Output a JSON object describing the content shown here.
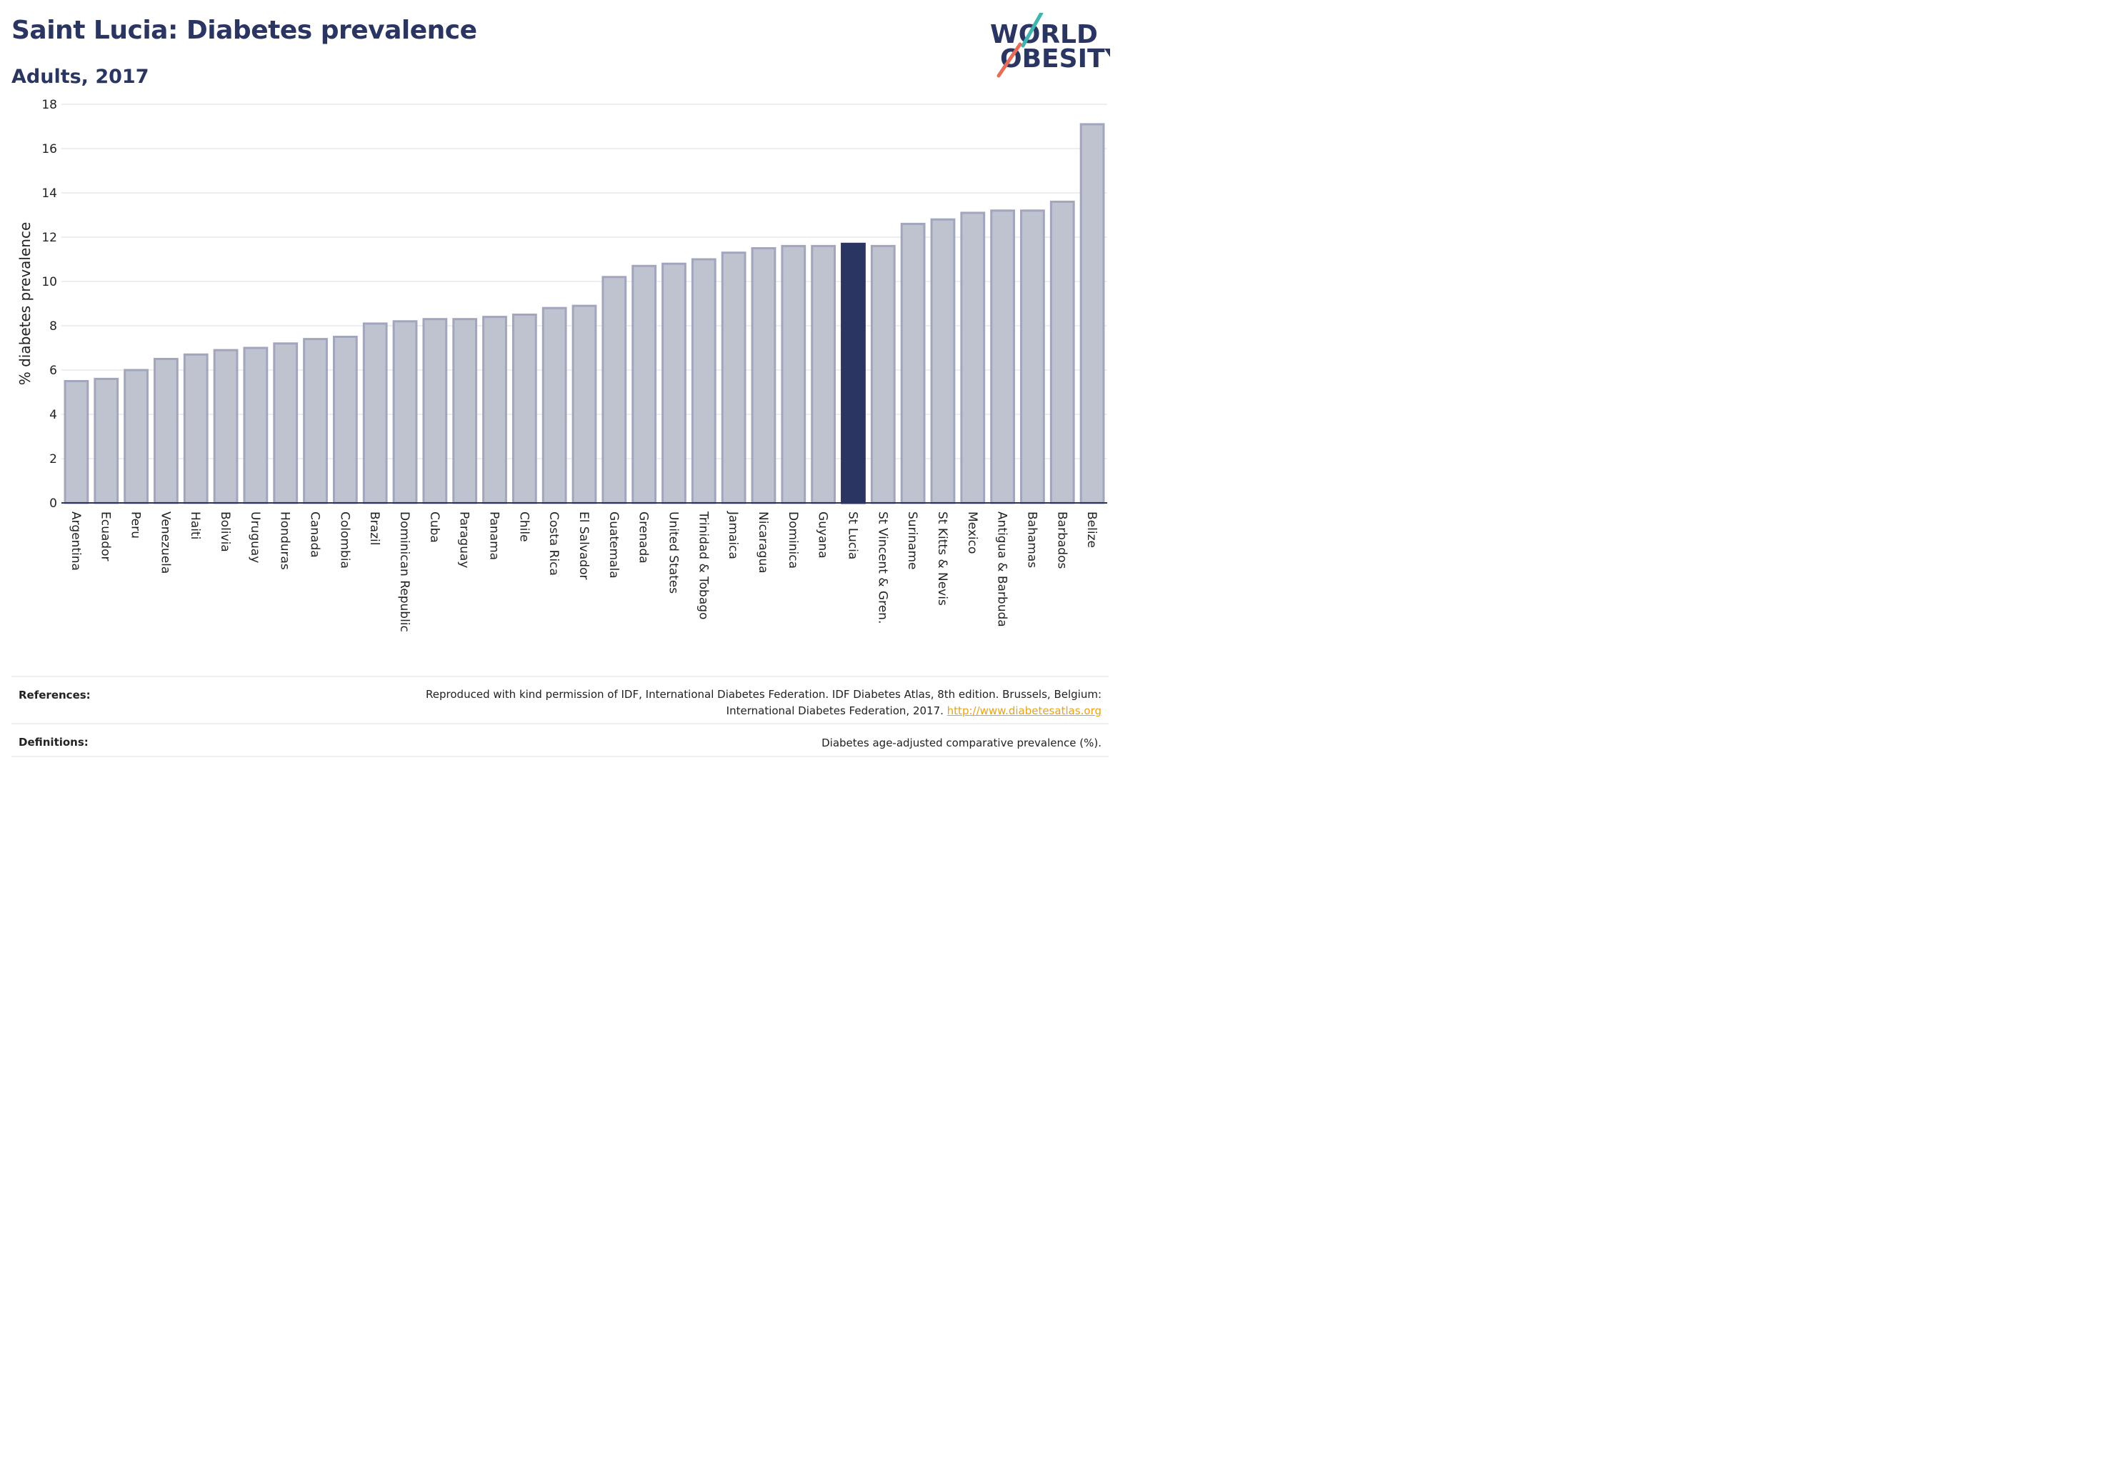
{
  "header": {
    "title": "Saint Lucia: Diabetes prevalence",
    "subtitle": "Adults, 2017"
  },
  "logo": {
    "line1": "WORLD",
    "line2": "OBESITY",
    "name": "world-obesity-logo"
  },
  "chart_data": {
    "type": "bar",
    "title": "Saint Lucia: Diabetes prevalence",
    "subtitle": "Adults, 2017",
    "xlabel": "",
    "ylabel": "% diabetes prevalence",
    "ylim": [
      0,
      18
    ],
    "yticks": [
      0,
      2,
      4,
      6,
      8,
      10,
      12,
      14,
      16,
      18
    ],
    "grid": true,
    "highlight": "St Lucia",
    "colors": {
      "bar": "#bfc2cf",
      "bar_edge": "#a2a6bd",
      "highlight": "#2b3561"
    },
    "categories": [
      "Argentina",
      "Ecuador",
      "Peru",
      "Venezuela",
      "Haiti",
      "Bolivia",
      "Uruguay",
      "Honduras",
      "Canada",
      "Colombia",
      "Brazil",
      "Dominican Republic",
      "Cuba",
      "Paraguay",
      "Panama",
      "Chile",
      "Costa Rica",
      "El Salvador",
      "Guatemala",
      "Grenada",
      "United States",
      "Trinidad & Tobago",
      "Jamaica",
      "Nicaragua",
      "Dominica",
      "Guyana",
      "St Lucia",
      "St Vincent & Gren.",
      "Suriname",
      "St Kitts & Nevis",
      "Mexico",
      "Antigua & Barbuda",
      "Bahamas",
      "Barbados",
      "Belize"
    ],
    "values": [
      5.5,
      5.6,
      6.0,
      6.5,
      6.7,
      6.9,
      7.0,
      7.2,
      7.4,
      7.5,
      8.1,
      8.2,
      8.3,
      8.3,
      8.4,
      8.5,
      8.8,
      8.9,
      10.2,
      10.7,
      10.8,
      11.0,
      11.3,
      11.5,
      11.6,
      11.6,
      11.7,
      11.6,
      12.6,
      12.8,
      13.1,
      13.2,
      13.2,
      13.6,
      17.1
    ]
  },
  "footer": {
    "references_label": "References:",
    "references_text_1": "Reproduced with kind permission of IDF, International Diabetes Federation. IDF Diabetes Atlas, 8th edition. Brussels, Belgium:",
    "references_text_2": "International Diabetes Federation, 2017.",
    "references_link": "http://www.diabetesatlas.org",
    "definitions_label": "Definitions:",
    "definitions_text": "Diabetes age-adjusted comparative prevalence (%)."
  }
}
